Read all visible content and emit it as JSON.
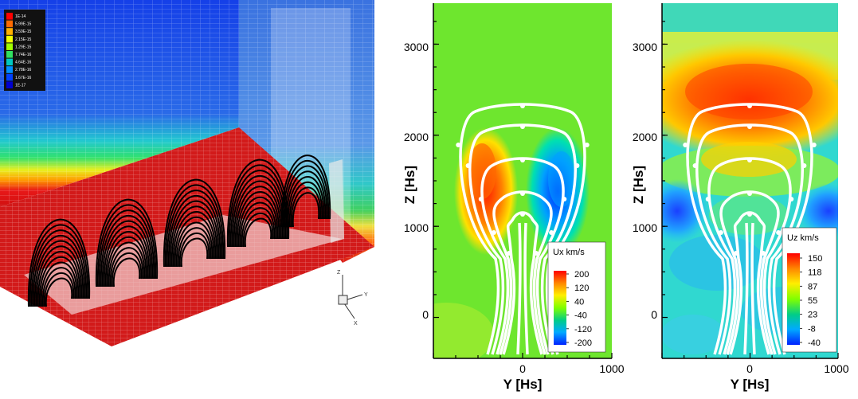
{
  "panel3d": {
    "colorbar_labels": [
      "1E-14",
      "5.99E-15",
      "3.59E-15",
      "2.15E-15",
      "1.29E-15",
      "7.74E-16",
      "4.64E-16",
      "2.78E-16",
      "1.67E-16",
      "1E-17"
    ],
    "colorbar_colors": [
      "#ff0000",
      "#ff6a00",
      "#ffb000",
      "#f0ff00",
      "#a0ff00",
      "#30e060",
      "#00c8c0",
      "#0090ff",
      "#0040ff",
      "#0000d0"
    ],
    "axes_triad": {
      "z": "Z",
      "y": "Y",
      "x": "X"
    }
  },
  "chart_data": [
    {
      "type": "heatmap",
      "title": "",
      "xlabel": "Y [Hs]",
      "ylabel": "Z [Hs]",
      "xlim": [
        -1000,
        1000
      ],
      "ylim": [
        -450,
        3450
      ],
      "x_ticks": [
        "0",
        "1000"
      ],
      "y_ticks": [
        "0",
        "1000",
        "2000",
        "3000"
      ],
      "legend": {
        "title": "Ux km/s",
        "labels": [
          "200",
          "120",
          "40",
          "-40",
          "-120",
          "-200"
        ],
        "position": "bottom-right"
      },
      "colorscale": [
        "#ff0000",
        "#ff8800",
        "#ffee00",
        "#80ff00",
        "#00cc88",
        "#00aaff",
        "#0022ff"
      ],
      "field_lines_color": "#ffffff"
    },
    {
      "type": "heatmap",
      "title": "",
      "xlabel": "Y [Hs]",
      "ylabel": "Z [Hs]",
      "xlim": [
        -1000,
        1000
      ],
      "ylim": [
        -450,
        3450
      ],
      "x_ticks": [
        "0",
        "1000"
      ],
      "y_ticks": [
        "0",
        "1000",
        "2000",
        "3000"
      ],
      "legend": {
        "title": "Uz km/s",
        "labels": [
          "150",
          "118",
          "87",
          "55",
          "23",
          "-8",
          "-40"
        ],
        "position": "bottom-right"
      },
      "colorscale": [
        "#ff0000",
        "#ff8800",
        "#ffee00",
        "#80ff00",
        "#00cc88",
        "#00aaff",
        "#0022ff"
      ],
      "field_lines_color": "#ffffff"
    }
  ]
}
